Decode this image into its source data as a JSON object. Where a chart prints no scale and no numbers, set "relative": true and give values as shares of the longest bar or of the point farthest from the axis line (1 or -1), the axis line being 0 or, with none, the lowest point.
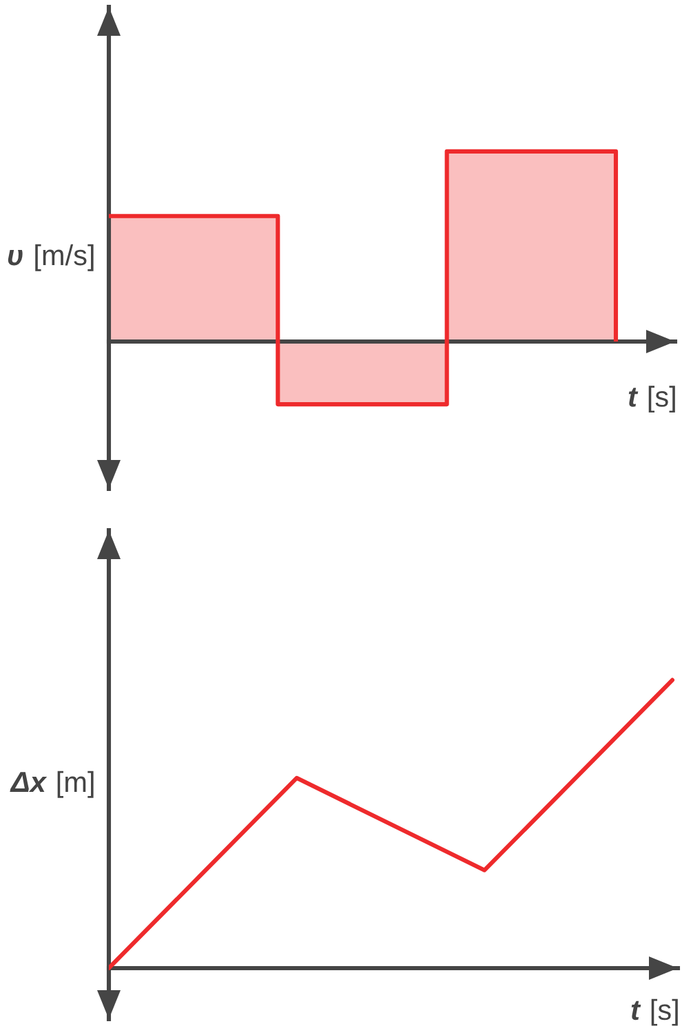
{
  "chart_data": [
    {
      "type": "step",
      "xlabel": "t [s]",
      "ylabel": "υ [m/s]",
      "relative": true,
      "categories": [
        null,
        null,
        null,
        null
      ],
      "series": [
        {
          "color": "#ee2a2c",
          "values": [
            0.66,
            -0.33,
            1,
            0
          ]
        }
      ]
    },
    {
      "type": "line",
      "xlabel": "t [s]",
      "ylabel": "Δx [m]",
      "relative": true,
      "categories": [
        null,
        null,
        null,
        null
      ],
      "series": [
        {
          "color": "#ee2a2c",
          "values": [
            0,
            0.66,
            0.34,
            1
          ]
        }
      ]
    }
  ]
}
